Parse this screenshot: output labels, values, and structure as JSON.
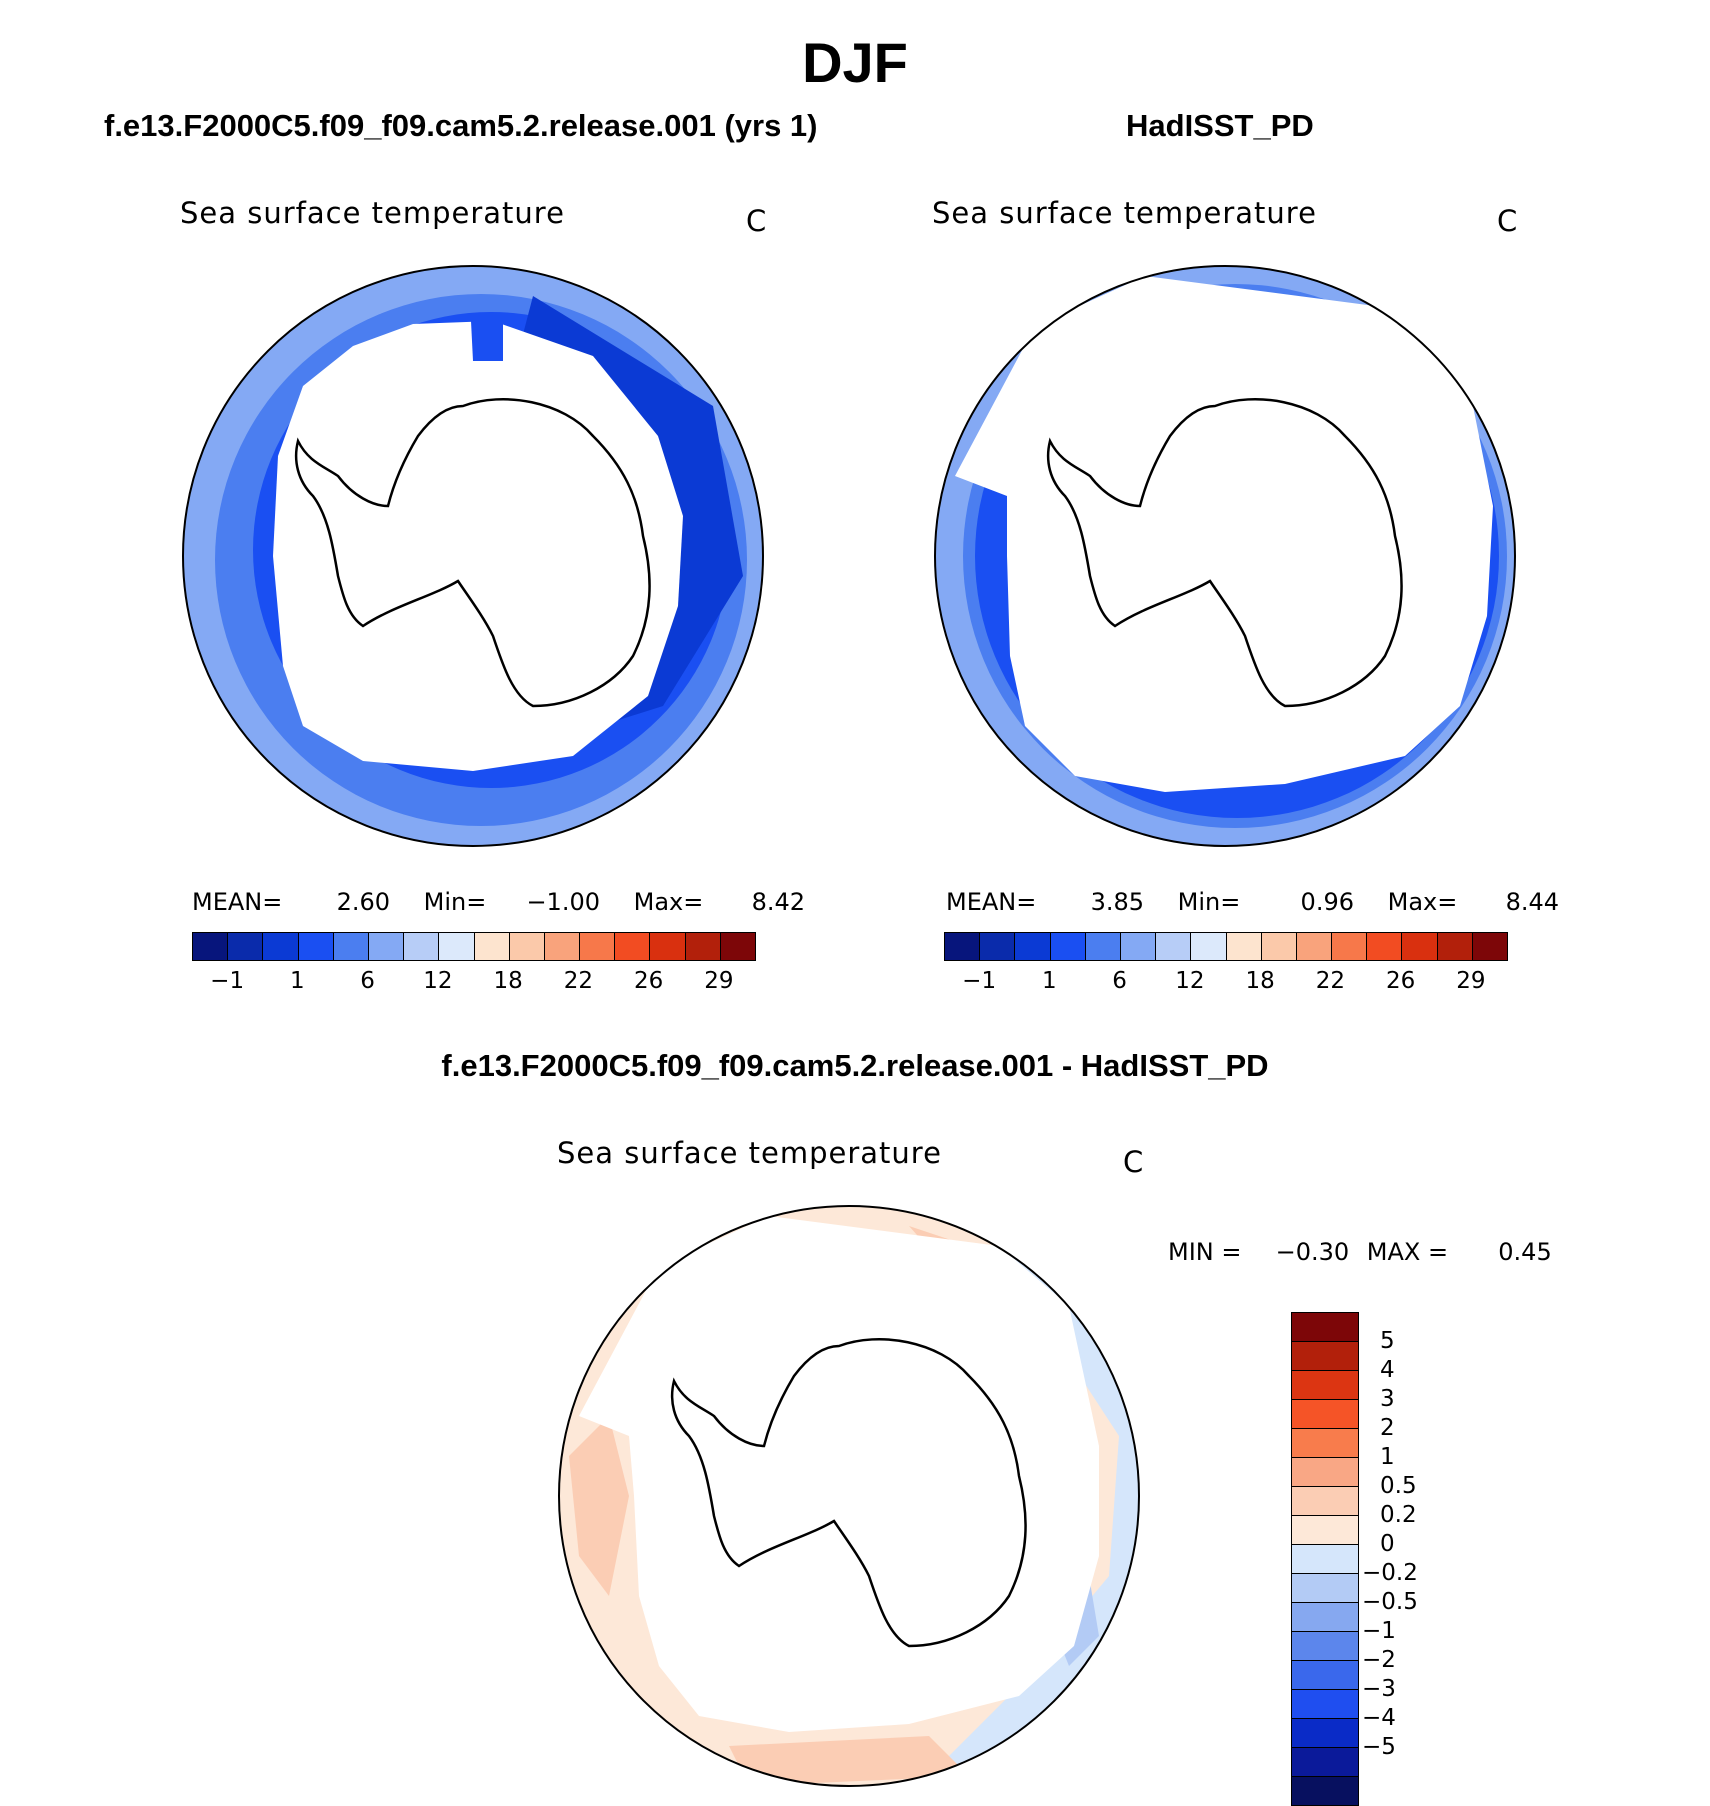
{
  "figure_title": "DJF",
  "panels": [
    {
      "title": "f.e13.F2000C5.f09_f09.cam5.2.release.001 (yrs 1)",
      "variable": "Sea surface temperature",
      "units": "C",
      "stats": {
        "mean_label": "MEAN=",
        "mean": "2.60",
        "min_label": "Min=",
        "min": "−1.00",
        "max_label": "Max=",
        "max": "8.42"
      }
    },
    {
      "title": "HadISST_PD",
      "variable": "Sea surface temperature",
      "units": "C",
      "stats": {
        "mean_label": "MEAN=",
        "mean": "3.85",
        "min_label": "Min=",
        "min": "0.96",
        "max_label": "Max=",
        "max": "8.44"
      }
    },
    {
      "title": "f.e13.F2000C5.f09_f09.cam5.2.release.001 - HadISST_PD",
      "variable": "Sea surface temperature",
      "units": "C",
      "stats": {
        "min_label": "MIN =",
        "min": "−0.30",
        "max_label": "MAX =",
        "max": "0.45"
      }
    }
  ],
  "colorbars": {
    "abs": {
      "colors": [
        "#07157c",
        "#0a2bab",
        "#0b3ad4",
        "#1a4ff2",
        "#4b7ef0",
        "#84a9f4",
        "#b7cdf7",
        "#dce9fb",
        "#fde4cf",
        "#fbc9aa",
        "#f9a37c",
        "#f7784a",
        "#f24c22",
        "#d9300f",
        "#b2200b",
        "#7d0608"
      ],
      "ticks": [
        "−1",
        "1",
        "6",
        "12",
        "18",
        "22",
        "26",
        "29"
      ]
    },
    "diff": {
      "colors_top_to_bottom": [
        "#7d0608",
        "#b2200b",
        "#dc3512",
        "#f55427",
        "#f87c4c",
        "#f9a785",
        "#fbcdb4",
        "#fde8d8",
        "#d5e6fb",
        "#b3cbf5",
        "#86a8f0",
        "#5c86ec",
        "#3a68ec",
        "#1f4ef0",
        "#0a2bc7",
        "#0b1a9a",
        "#07105f"
      ],
      "ticks_top_to_bottom": [
        "5",
        "4",
        "3",
        "2",
        "1",
        "0.5",
        "0.2",
        "0",
        "−0.2",
        "−0.5",
        "−1",
        "−2",
        "−3",
        "−4",
        "−5"
      ]
    }
  }
}
